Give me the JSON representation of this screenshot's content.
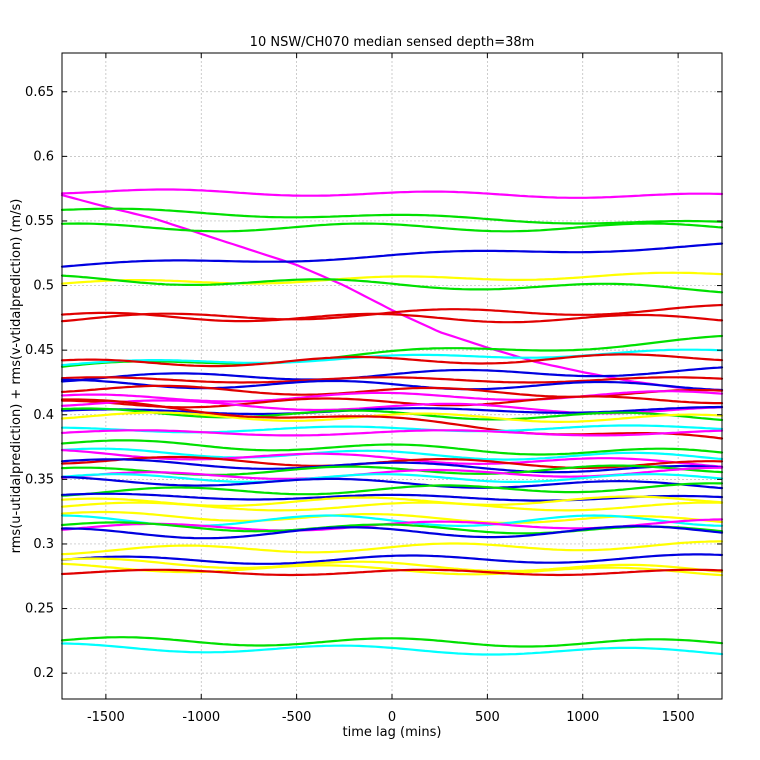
{
  "chart_data": {
    "type": "line",
    "title": "10 NSW/CH070 median sensed depth=38m",
    "xlabel": "time lag (mins)",
    "ylabel": "rms(u-utidalprediction) + rms(v-vtidalprediction) (m/s)",
    "xlim": [
      -1730,
      1730
    ],
    "ylim": [
      0.18,
      0.68
    ],
    "xticks": [
      -1500,
      -1000,
      -500,
      0,
      500,
      1000,
      1500
    ],
    "yticks": [
      0.2,
      0.25,
      0.3,
      0.35,
      0.4,
      0.45,
      0.5,
      0.55,
      0.6,
      0.65
    ],
    "grid": true,
    "legend": "none",
    "series": [
      {
        "color": "#ff00ff",
        "base": 0.571,
        "amp": 0.002,
        "trend": -0.004,
        "period": 1400,
        "phase": 0.5
      },
      {
        "color": "#ff00ff",
        "base": 0.57,
        "amp": 0.0,
        "trend": 0.0,
        "period": 1400,
        "phase": 0.0,
        "custom": "decline",
        "x": [
          -1730,
          -1500,
          -1250,
          -1000,
          -750,
          -500,
          -250,
          0,
          250,
          500,
          750,
          1000,
          1250,
          1500,
          1730
        ],
        "y": [
          0.57,
          0.561,
          0.552,
          0.54,
          0.528,
          0.516,
          0.5,
          0.481,
          0.464,
          0.452,
          0.441,
          0.433,
          0.426,
          0.421,
          0.419
        ]
      },
      {
        "color": "#00e000",
        "base": 0.553,
        "amp": 0.002,
        "trend": -0.011,
        "period": 1500,
        "phase": 1.0
      },
      {
        "color": "#00e000",
        "base": 0.545,
        "amp": 0.003,
        "trend": 0.0,
        "period": 1500,
        "phase": 2.2
      },
      {
        "color": "#0000e0",
        "base": 0.523,
        "amp": 0.002,
        "trend": 0.016,
        "period": 1600,
        "phase": 0.3
      },
      {
        "color": "#ffff00",
        "base": 0.505,
        "amp": 0.002,
        "trend": 0.007,
        "period": 1400,
        "phase": 1.5
      },
      {
        "color": "#00e000",
        "base": 0.501,
        "amp": 0.003,
        "trend": -0.008,
        "period": 1500,
        "phase": 3.0
      },
      {
        "color": "#e00000",
        "base": 0.478,
        "amp": 0.003,
        "trend": 0.008,
        "period": 1500,
        "phase": 0.4
      },
      {
        "color": "#e00000",
        "base": 0.475,
        "amp": 0.003,
        "trend": -0.002,
        "period": 1400,
        "phase": 2.0
      },
      {
        "color": "#00e000",
        "base": 0.447,
        "amp": 0.003,
        "trend": 0.022,
        "period": 1600,
        "phase": 0.9
      },
      {
        "color": "#00ffff",
        "base": 0.444,
        "amp": 0.002,
        "trend": 0.01,
        "period": 1400,
        "phase": 1.2
      },
      {
        "color": "#e00000",
        "base": 0.442,
        "amp": 0.003,
        "trend": 0.005,
        "period": 1400,
        "phase": 2.5
      },
      {
        "color": "#0000e0",
        "base": 0.431,
        "amp": 0.003,
        "trend": 0.006,
        "period": 1500,
        "phase": 0.1
      },
      {
        "color": "#e00000",
        "base": 0.427,
        "amp": 0.002,
        "trend": 0.0,
        "period": 1500,
        "phase": 1.7
      },
      {
        "color": "#0000e0",
        "base": 0.423,
        "amp": 0.003,
        "trend": -0.002,
        "period": 1400,
        "phase": 2.9
      },
      {
        "color": "#e00000",
        "base": 0.418,
        "amp": 0.003,
        "trend": -0.004,
        "period": 1400,
        "phase": 0.6
      },
      {
        "color": "#ff00ff",
        "base": 0.414,
        "amp": 0.003,
        "trend": 0.003,
        "period": 1500,
        "phase": 1.9
      },
      {
        "color": "#e00000",
        "base": 0.41,
        "amp": 0.003,
        "trend": 0.004,
        "period": 1400,
        "phase": 3.2
      },
      {
        "color": "#ff00ff",
        "base": 0.406,
        "amp": 0.003,
        "trend": -0.006,
        "period": 1500,
        "phase": 0.2
      },
      {
        "color": "#0000e0",
        "base": 0.403,
        "amp": 0.002,
        "trend": 0.002,
        "period": 1600,
        "phase": 1.1
      },
      {
        "color": "#00e000",
        "base": 0.4,
        "amp": 0.003,
        "trend": -0.004,
        "period": 1400,
        "phase": 2.4
      },
      {
        "color": "#ffff00",
        "base": 0.398,
        "amp": 0.003,
        "trend": -0.002,
        "period": 1400,
        "phase": 0.8
      },
      {
        "color": "#e00000",
        "base": 0.395,
        "amp": 0.003,
        "trend": -0.03,
        "period": 1500,
        "phase": 1.6
      },
      {
        "color": "#00ffff",
        "base": 0.389,
        "amp": 0.002,
        "trend": 0.002,
        "period": 1500,
        "phase": 2.7
      },
      {
        "color": "#ff00ff",
        "base": 0.386,
        "amp": 0.002,
        "trend": 0.0,
        "period": 1600,
        "phase": 0.5
      },
      {
        "color": "#00e000",
        "base": 0.374,
        "amp": 0.003,
        "trend": -0.008,
        "period": 1400,
        "phase": 1.4
      },
      {
        "color": "#00ffff",
        "base": 0.369,
        "amp": 0.003,
        "trend": -0.004,
        "period": 1400,
        "phase": 2.1
      },
      {
        "color": "#ff00ff",
        "base": 0.366,
        "amp": 0.003,
        "trend": -0.008,
        "period": 1500,
        "phase": 3.0
      },
      {
        "color": "#e00000",
        "base": 0.363,
        "amp": 0.003,
        "trend": -0.004,
        "period": 1400,
        "phase": 0.3
      },
      {
        "color": "#0000e0",
        "base": 0.36,
        "amp": 0.003,
        "trend": -0.006,
        "period": 1500,
        "phase": 1.3
      },
      {
        "color": "#00e000",
        "base": 0.357,
        "amp": 0.003,
        "trend": 0.002,
        "period": 1400,
        "phase": 2.6
      },
      {
        "color": "#ff00ff",
        "base": 0.354,
        "amp": 0.003,
        "trend": 0.004,
        "period": 1500,
        "phase": 0.7
      },
      {
        "color": "#00ffff",
        "base": 0.351,
        "amp": 0.003,
        "trend": 0.0,
        "period": 1400,
        "phase": 1.8
      },
      {
        "color": "#0000e0",
        "base": 0.347,
        "amp": 0.003,
        "trend": -0.004,
        "period": 1500,
        "phase": 2.8
      },
      {
        "color": "#00e000",
        "base": 0.342,
        "amp": 0.003,
        "trend": 0.004,
        "period": 1400,
        "phase": 0.4
      },
      {
        "color": "#0000e0",
        "base": 0.336,
        "amp": 0.002,
        "trend": -0.002,
        "period": 1500,
        "phase": 1.5
      },
      {
        "color": "#ffff00",
        "base": 0.333,
        "amp": 0.003,
        "trend": 0.002,
        "period": 1400,
        "phase": 2.3
      },
      {
        "color": "#ffff00",
        "base": 0.329,
        "amp": 0.003,
        "trend": 0.0,
        "period": 1500,
        "phase": 0.9
      },
      {
        "color": "#ffff00",
        "base": 0.32,
        "amp": 0.003,
        "trend": -0.004,
        "period": 1400,
        "phase": 2.0
      },
      {
        "color": "#00ffff",
        "base": 0.318,
        "amp": 0.004,
        "trend": 0.0,
        "period": 1400,
        "phase": 3.1
      },
      {
        "color": "#ff00ff",
        "base": 0.314,
        "amp": 0.003,
        "trend": 0.004,
        "period": 1500,
        "phase": 0.6
      },
      {
        "color": "#00e000",
        "base": 0.312,
        "amp": 0.003,
        "trend": -0.004,
        "period": 1400,
        "phase": 1.7
      },
      {
        "color": "#0000e0",
        "base": 0.309,
        "amp": 0.004,
        "trend": 0.002,
        "period": 1500,
        "phase": 2.5
      },
      {
        "color": "#ffff00",
        "base": 0.297,
        "amp": 0.003,
        "trend": 0.004,
        "period": 1400,
        "phase": 0.2
      },
      {
        "color": "#0000e0",
        "base": 0.288,
        "amp": 0.003,
        "trend": 0.002,
        "period": 1500,
        "phase": 1.2
      },
      {
        "color": "#ffff00",
        "base": 0.283,
        "amp": 0.003,
        "trend": -0.006,
        "period": 1400,
        "phase": 2.2
      },
      {
        "color": "#ffff00",
        "base": 0.28,
        "amp": 0.003,
        "trend": -0.004,
        "period": 1500,
        "phase": 3.0
      },
      {
        "color": "#e00000",
        "base": 0.278,
        "amp": 0.002,
        "trend": 0.0,
        "period": 1400,
        "phase": 0.8
      },
      {
        "color": "#00e000",
        "base": 0.224,
        "amp": 0.003,
        "trend": -0.002,
        "period": 1400,
        "phase": 1.6
      },
      {
        "color": "#00ffff",
        "base": 0.218,
        "amp": 0.003,
        "trend": -0.004,
        "period": 1500,
        "phase": 2.6
      }
    ]
  }
}
